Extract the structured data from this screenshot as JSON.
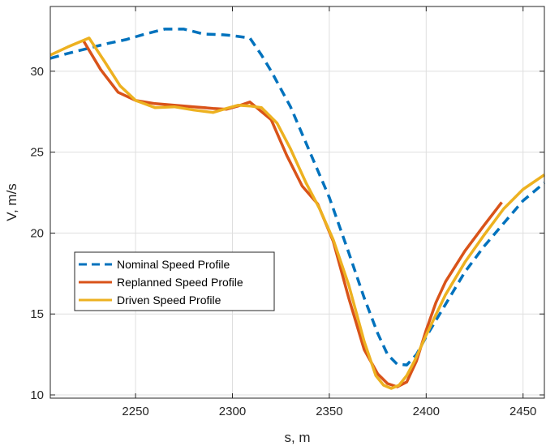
{
  "chart_data": {
    "type": "line",
    "title": "",
    "xlabel": "s, m",
    "ylabel": "V, m/s",
    "xlim": [
      2206,
      2461
    ],
    "ylim": [
      9.8,
      34
    ],
    "xticks": [
      2250,
      2300,
      2350,
      2400,
      2450
    ],
    "yticks": [
      10,
      15,
      20,
      25,
      30
    ],
    "grid": true,
    "legend_position": "lower-left",
    "series": [
      {
        "name": "Nominal Speed Profile",
        "color": "#0072BD",
        "style": "dashed",
        "x": [
          2206,
          2215,
          2225,
          2235,
          2245,
          2255,
          2265,
          2275,
          2285,
          2295,
          2300,
          2309,
          2315,
          2320,
          2330,
          2340,
          2350,
          2360,
          2368,
          2375,
          2380,
          2385,
          2390,
          2395,
          2400,
          2410,
          2420,
          2430,
          2440,
          2450,
          2461
        ],
        "y": [
          30.8,
          31.1,
          31.4,
          31.7,
          31.95,
          32.3,
          32.6,
          32.6,
          32.3,
          32.25,
          32.2,
          32.05,
          31.0,
          30.0,
          27.8,
          25.0,
          22.2,
          18.8,
          16.0,
          13.8,
          12.5,
          11.9,
          11.85,
          12.5,
          13.6,
          15.6,
          17.6,
          19.2,
          20.6,
          22.0,
          23.1
        ]
      },
      {
        "name": "Replanned Speed Profile",
        "color": "#D95319",
        "style": "solid",
        "x": [
          2223,
          2232,
          2241,
          2250,
          2260,
          2270,
          2280,
          2290,
          2297,
          2303,
          2309,
          2313,
          2320,
          2328,
          2336,
          2344,
          2352,
          2360,
          2368,
          2375,
          2380,
          2385,
          2390,
          2395,
          2400,
          2405,
          2410,
          2420,
          2430,
          2439
        ],
        "y": [
          31.9,
          30.1,
          28.7,
          28.2,
          28.0,
          27.9,
          27.8,
          27.7,
          27.65,
          27.85,
          28.1,
          27.7,
          27.0,
          24.8,
          22.9,
          21.8,
          19.5,
          16.0,
          12.8,
          11.3,
          10.7,
          10.5,
          10.8,
          12.1,
          14.0,
          15.7,
          17.0,
          18.9,
          20.5,
          21.9
        ]
      },
      {
        "name": "Driven Speed Profile",
        "color": "#EDB120",
        "style": "solid",
        "x": [
          2206,
          2215,
          2226,
          2234,
          2242,
          2250,
          2260,
          2270,
          2280,
          2290,
          2297,
          2303,
          2309,
          2315,
          2323,
          2330,
          2338,
          2345,
          2352,
          2360,
          2368,
          2374,
          2378,
          2382,
          2386,
          2390,
          2394,
          2400,
          2410,
          2420,
          2430,
          2440,
          2450,
          2461
        ],
        "y": [
          31.0,
          31.5,
          32.05,
          30.6,
          29.1,
          28.2,
          27.75,
          27.8,
          27.6,
          27.45,
          27.7,
          27.9,
          27.85,
          27.75,
          26.8,
          25.2,
          23.1,
          21.5,
          19.6,
          16.8,
          13.3,
          11.2,
          10.6,
          10.4,
          10.6,
          11.2,
          12.1,
          13.7,
          16.2,
          18.2,
          19.9,
          21.5,
          22.7,
          23.6
        ]
      }
    ]
  }
}
